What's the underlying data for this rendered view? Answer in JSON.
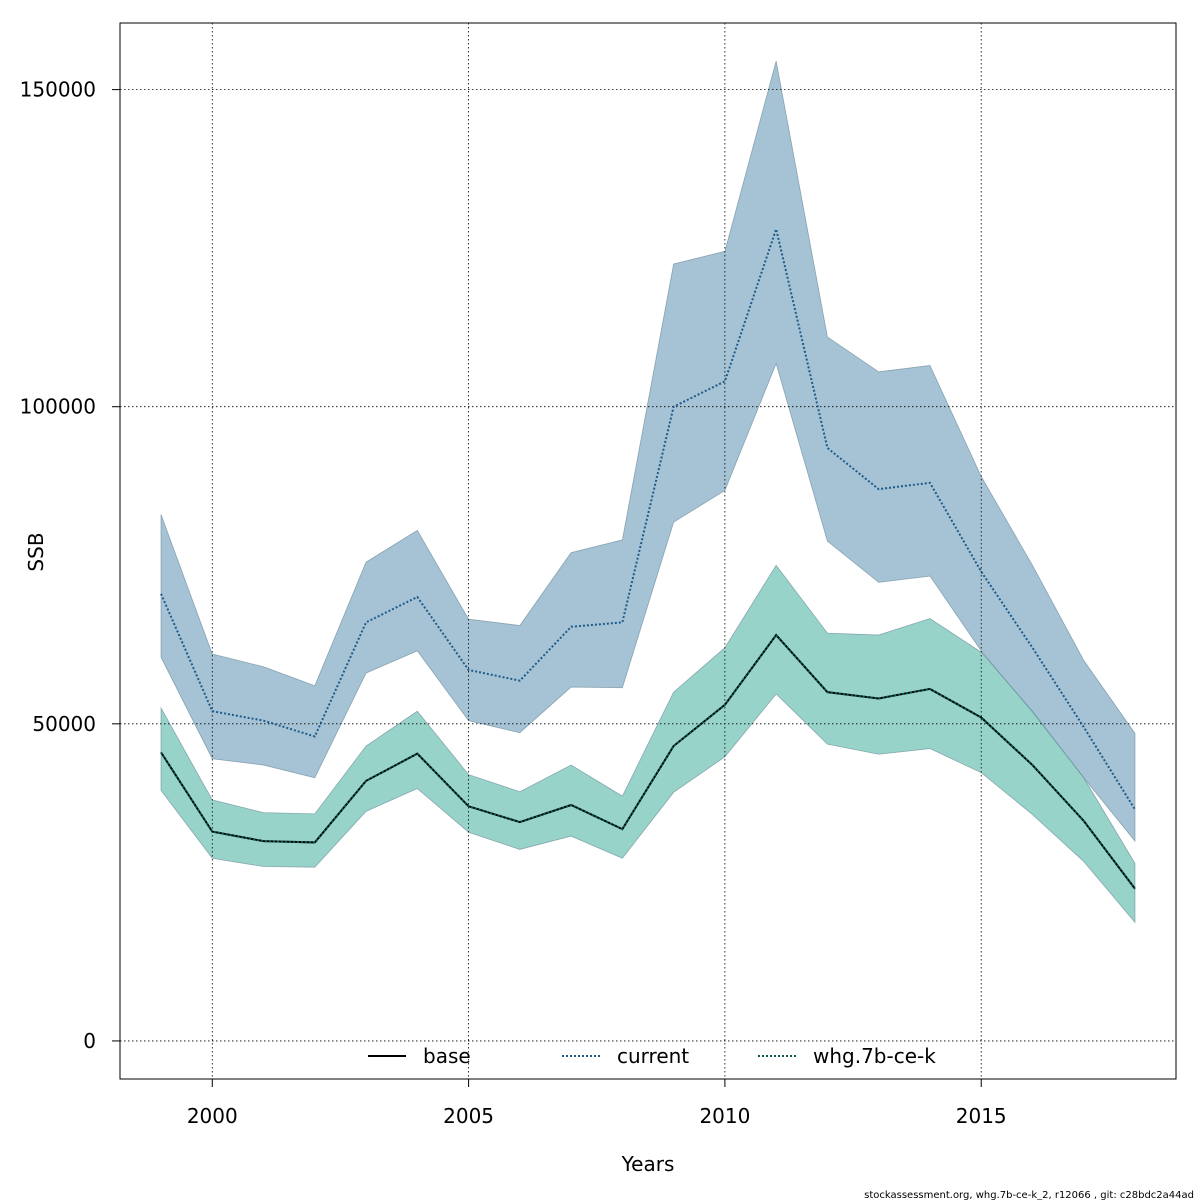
{
  "chart_data": {
    "type": "line",
    "xlabel": "Years",
    "ylabel": "SSB",
    "xlim": [
      1998.2,
      2018.8
    ],
    "ylim": [
      -6000,
      160500
    ],
    "x_ticks": [
      2000,
      2005,
      2010,
      2015
    ],
    "y_ticks": [
      0,
      50000,
      100000,
      150000
    ],
    "grid": true,
    "legend_position": "bottom",
    "x": [
      1999,
      2000,
      2001,
      2002,
      2003,
      2004,
      2005,
      2006,
      2007,
      2008,
      2009,
      2010,
      2011,
      2012,
      2013,
      2014,
      2015,
      2016,
      2017,
      2018
    ],
    "series": [
      {
        "name": "base",
        "line_style": "solid",
        "color": "#000000",
        "values": [
          45500,
          33000,
          31500,
          31300,
          41000,
          45300,
          37000,
          34500,
          37200,
          33400,
          46500,
          53000,
          64000,
          55000,
          54000,
          55500,
          51000,
          43500,
          34700,
          24000
        ]
      },
      {
        "name": "current",
        "line_style": "dotted",
        "color": "#1f5b8a",
        "band_color": "#7fa9c3",
        "values": [
          70500,
          52000,
          50500,
          48000,
          66000,
          70000,
          58500,
          56800,
          65300,
          66000,
          100000,
          104000,
          128000,
          93500,
          87000,
          88000,
          74000,
          62000,
          49500,
          36500
        ],
        "upper": [
          83000,
          61000,
          59000,
          56000,
          75500,
          80500,
          66500,
          65500,
          77000,
          79000,
          122500,
          124500,
          154500,
          111000,
          105500,
          106500,
          89000,
          75000,
          60000,
          48500
        ],
        "lower": [
          60500,
          44500,
          43500,
          41500,
          58000,
          61500,
          50500,
          48600,
          55800,
          55700,
          81800,
          86800,
          106800,
          78800,
          72300,
          73300,
          61500,
          51800,
          41500,
          31500
        ]
      },
      {
        "name": "whg.7b-ce-k",
        "line_style": "dotted",
        "color": "#0b5c52",
        "band_color": "#6cc0b3",
        "values": [
          45500,
          33000,
          31500,
          31300,
          41000,
          45300,
          37000,
          34500,
          37200,
          33400,
          46500,
          53000,
          64000,
          55000,
          54000,
          55500,
          51000,
          43500,
          34700,
          24000
        ],
        "upper": [
          52500,
          38000,
          36000,
          35800,
          46500,
          52000,
          42000,
          39300,
          43500,
          38600,
          55000,
          62000,
          75000,
          64300,
          64000,
          66600,
          61300,
          52000,
          41500,
          28000
        ],
        "lower": [
          39500,
          28800,
          27500,
          27400,
          36200,
          39800,
          32900,
          30200,
          32300,
          28800,
          39200,
          44800,
          54700,
          46800,
          45200,
          46100,
          42300,
          35700,
          28300,
          18700
        ]
      }
    ]
  },
  "footnote": "stockassessment.org, whg.7b-ce-k_2, r12066 , git: c28bdc2a44ad"
}
